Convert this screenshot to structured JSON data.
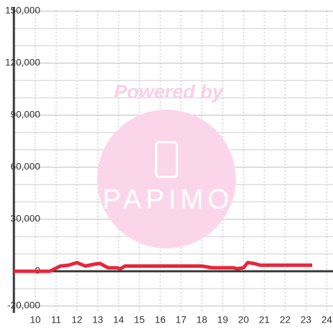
{
  "chart_data": {
    "type": "line",
    "x": [
      8.97,
      10,
      10.7,
      11.2,
      11.6,
      12,
      12.4,
      12.8,
      13.1,
      13.5,
      13.9,
      14.1,
      14.3,
      15,
      16,
      17,
      18,
      18.5,
      19,
      19.5,
      19.7,
      20,
      20.2,
      20.5,
      20.8,
      21.5,
      22.5,
      23.3
    ],
    "series": [
      {
        "color": "#e8253a",
        "values": [
          0,
          0,
          0,
          3000,
          3500,
          5000,
          3000,
          4000,
          4500,
          2000,
          2000,
          1500,
          3000,
          3000,
          3000,
          3000,
          3000,
          2000,
          2000,
          2000,
          1500,
          2000,
          5000,
          4500,
          3500,
          3500,
          3500,
          3500
        ]
      }
    ],
    "xlim": [
      8.97,
      24.3
    ],
    "xticks": [
      10,
      11,
      12,
      13,
      14,
      15,
      16,
      17,
      18,
      19,
      20,
      21,
      22,
      23,
      24
    ],
    "ylim": [
      -24000,
      150000
    ],
    "yticks": [
      {
        "value": -20000,
        "label": "-20,000"
      },
      {
        "value": 0,
        "label": "0"
      },
      {
        "value": 30000,
        "label": "30,000"
      },
      {
        "value": 60000,
        "label": "60,000"
      },
      {
        "value": 90000,
        "label": "90,000"
      },
      {
        "value": 120000,
        "label": "120,000"
      },
      {
        "value": 150000,
        "label": "150,000"
      }
    ],
    "yminor": [
      -10000,
      10000,
      20000,
      40000,
      50000,
      70000,
      80000,
      100000,
      110000,
      130000,
      140000
    ],
    "grid": true,
    "watermark": {
      "text": "Powered by",
      "logo": "PAPIMO"
    }
  }
}
